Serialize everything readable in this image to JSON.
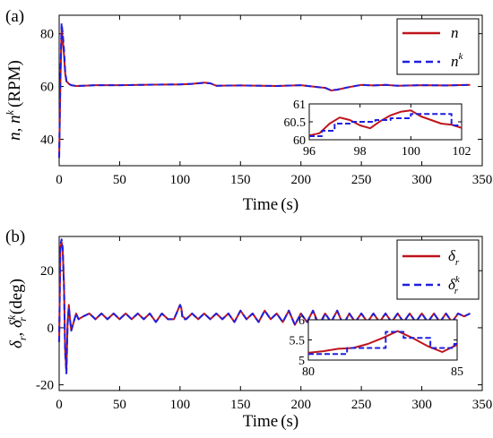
{
  "colors": {
    "measured": "#c0141c",
    "estimated": "#1f1fe0",
    "axis": "#000000"
  },
  "chart_data": [
    {
      "type": "line",
      "panel_label": "(a)",
      "xlabel_main": "Time",
      "xlabel_unit": "(s)",
      "ylabel": "n, n^k (RPM)",
      "ylabel_base": "n, n",
      "ylabel_sup": "k",
      "ylabel_unit": "(RPM)",
      "xlim": [
        0,
        350
      ],
      "ylim": [
        30,
        87
      ],
      "xticks": [
        0,
        50,
        100,
        150,
        200,
        250,
        300,
        350
      ],
      "yticks": [
        40,
        60,
        80
      ],
      "legend_position": "top-right",
      "series": [
        {
          "name": "n",
          "legend_base": "n",
          "legend_sub": "",
          "legend_sup": "",
          "x": [
            0,
            1,
            2,
            3,
            4,
            5,
            6,
            8,
            10,
            14,
            20,
            30,
            50,
            80,
            100,
            110,
            120,
            125,
            130,
            150,
            180,
            200,
            210,
            220,
            225,
            230,
            240,
            250,
            260,
            270,
            280,
            300,
            320,
            340
          ],
          "y": [
            33,
            60,
            82,
            78,
            72,
            65,
            62,
            61,
            60.5,
            60.2,
            60.3,
            60.5,
            60.5,
            60.7,
            60.8,
            61.0,
            61.5,
            61.2,
            60.3,
            60.4,
            60.2,
            60.5,
            60.0,
            59.5,
            58.5,
            58.8,
            59.8,
            60.6,
            60.4,
            60.6,
            60.3,
            60.5,
            60.4,
            60.6
          ]
        },
        {
          "name": "n^k",
          "legend_base": "n",
          "legend_sub": "",
          "legend_sup": "k",
          "x": [
            0,
            1,
            2,
            3,
            4,
            5,
            6,
            8,
            10,
            14,
            20,
            30,
            50,
            80,
            100,
            110,
            120,
            125,
            130,
            150,
            180,
            200,
            210,
            220,
            225,
            230,
            240,
            250,
            260,
            270,
            280,
            300,
            320,
            340
          ],
          "y": [
            33,
            62,
            84,
            80,
            74,
            66,
            62,
            61,
            60.5,
            60.2,
            60.3,
            60.5,
            60.5,
            60.7,
            60.8,
            61.0,
            61.4,
            61.2,
            60.3,
            60.4,
            60.2,
            60.5,
            60.0,
            59.5,
            58.6,
            58.8,
            59.8,
            60.6,
            60.4,
            60.6,
            60.3,
            60.5,
            60.4,
            60.6
          ]
        }
      ],
      "inset": {
        "xlim": [
          96,
          102
        ],
        "ylim": [
          60,
          61
        ],
        "xticks": [
          96,
          98,
          100,
          102
        ],
        "yticks": [
          60,
          60.5,
          61
        ],
        "series": [
          {
            "name": "n",
            "x": [
              96,
              96.4,
              96.8,
              97.2,
              97.6,
              98,
              98.4,
              98.8,
              99.2,
              99.6,
              100,
              100.4,
              100.8,
              101.2,
              101.6,
              102
            ],
            "y": [
              60.12,
              60.18,
              60.45,
              60.62,
              60.55,
              60.4,
              60.32,
              60.52,
              60.68,
              60.78,
              60.82,
              60.65,
              60.55,
              60.45,
              60.42,
              60.33
            ]
          },
          {
            "name": "n^k",
            "x": [
              96,
              96.5,
              96.5,
              97,
              97,
              97.6,
              97.6,
              98.6,
              98.6,
              99.2,
              99.2,
              100,
              100,
              101.6,
              101.6,
              102
            ],
            "y": [
              60.1,
              60.1,
              60.25,
              60.25,
              60.45,
              60.45,
              60.5,
              60.5,
              60.55,
              60.55,
              60.6,
              60.6,
              60.72,
              60.72,
              60.4,
              60.4
            ]
          }
        ]
      }
    },
    {
      "type": "line",
      "panel_label": "(b)",
      "xlabel_main": "Time",
      "xlabel_unit": "(s)",
      "ylabel": "δr, δr^k (deg)",
      "ylabel_base": "δ",
      "ylabel_sub": "r",
      "ylabel_sup": "k",
      "ylabel_unit": "(deg)",
      "xlim": [
        0,
        350
      ],
      "ylim": [
        -22,
        32
      ],
      "xticks": [
        0,
        50,
        100,
        150,
        200,
        250,
        300,
        350
      ],
      "yticks": [
        -20,
        0,
        20
      ],
      "legend_position": "top-right",
      "series": [
        {
          "name": "δr",
          "legend_base": "δ",
          "legend_sub": "r",
          "legend_sup": "",
          "x": [
            0,
            1,
            2,
            3,
            4,
            5,
            6,
            7,
            8,
            9,
            10,
            12,
            14,
            16,
            20,
            25,
            30,
            35,
            40,
            45,
            50,
            55,
            60,
            65,
            70,
            75,
            80,
            85,
            90,
            95,
            100,
            101,
            102,
            105,
            110,
            115,
            120,
            125,
            130,
            135,
            140,
            145,
            150,
            155,
            160,
            165,
            170,
            175,
            180,
            185,
            190,
            195,
            200,
            205,
            210,
            215,
            220,
            225,
            230,
            235,
            240,
            245,
            250,
            255,
            260,
            265,
            270,
            275,
            280,
            285,
            290,
            295,
            300,
            305,
            310,
            315,
            320,
            325,
            330,
            335,
            340
          ],
          "y": [
            -5,
            28,
            30,
            27,
            15,
            -8,
            -15,
            2,
            8,
            3,
            -1,
            2,
            5,
            3,
            4,
            5,
            3,
            5,
            3,
            5,
            3,
            5,
            3,
            5,
            3,
            5,
            2,
            5,
            3,
            3,
            8,
            7,
            4,
            3,
            5,
            3,
            5,
            3,
            5,
            3,
            5,
            2,
            6,
            3,
            5,
            2,
            6,
            3,
            5,
            2,
            6,
            1,
            5,
            2,
            6,
            1,
            5,
            2,
            6,
            1,
            5,
            2,
            5,
            2,
            5,
            2,
            5,
            2,
            5,
            2,
            5,
            2,
            5,
            2,
            5,
            2,
            5,
            2,
            5,
            4,
            5
          ]
        },
        {
          "name": "δr^k",
          "legend_base": "δ",
          "legend_sub": "r",
          "legend_sup": "k",
          "x": [
            0,
            1,
            2,
            3,
            4,
            5,
            6,
            7,
            8,
            9,
            10,
            12,
            14,
            16,
            20,
            25,
            30,
            35,
            40,
            45,
            50,
            55,
            60,
            65,
            70,
            75,
            80,
            85,
            90,
            95,
            100,
            101,
            102,
            105,
            110,
            115,
            120,
            125,
            130,
            135,
            140,
            145,
            150,
            155,
            160,
            165,
            170,
            175,
            180,
            185,
            190,
            195,
            200,
            205,
            210,
            215,
            220,
            225,
            230,
            235,
            240,
            245,
            250,
            255,
            260,
            265,
            270,
            275,
            280,
            285,
            290,
            295,
            300,
            305,
            310,
            315,
            320,
            325,
            330,
            335,
            340
          ],
          "y": [
            -5,
            29,
            31,
            28,
            14,
            -9,
            -16,
            1,
            7,
            3,
            -1,
            2,
            5,
            3,
            4,
            5,
            3,
            5,
            3,
            5,
            3,
            5,
            3,
            5,
            3,
            5,
            2,
            5,
            3,
            3,
            8,
            7,
            3,
            3,
            5,
            3,
            5,
            3,
            5,
            3,
            5,
            2,
            6,
            3,
            5,
            2,
            6,
            3,
            5,
            2,
            6,
            1,
            5,
            2,
            6,
            0,
            5,
            2,
            6,
            1,
            5,
            2,
            5,
            2,
            5,
            2,
            5,
            2,
            5,
            2,
            5,
            2,
            5,
            2,
            5,
            2,
            5,
            2,
            5,
            4,
            5
          ]
        }
      ],
      "inset": {
        "xlim": [
          80,
          85
        ],
        "ylim": [
          5,
          6
        ],
        "xticks": [
          80,
          85
        ],
        "yticks": [
          5,
          5.5,
          6
        ],
        "series": [
          {
            "name": "δr",
            "x": [
              80,
              80.5,
              81,
              81.5,
              82,
              82.5,
              83,
              83.5,
              84,
              84.5,
              85
            ],
            "y": [
              5.18,
              5.22,
              5.28,
              5.3,
              5.4,
              5.55,
              5.72,
              5.55,
              5.35,
              5.2,
              5.38
            ]
          },
          {
            "name": "δr^k",
            "x": [
              80,
              81.3,
              81.3,
              82.6,
              82.6,
              83.2,
              83.2,
              84.1,
              84.1,
              84.9,
              84.9,
              85
            ],
            "y": [
              5.15,
              5.15,
              5.3,
              5.3,
              5.7,
              5.7,
              5.55,
              5.55,
              5.3,
              5.3,
              5.4,
              5.4
            ]
          }
        ]
      }
    }
  ]
}
